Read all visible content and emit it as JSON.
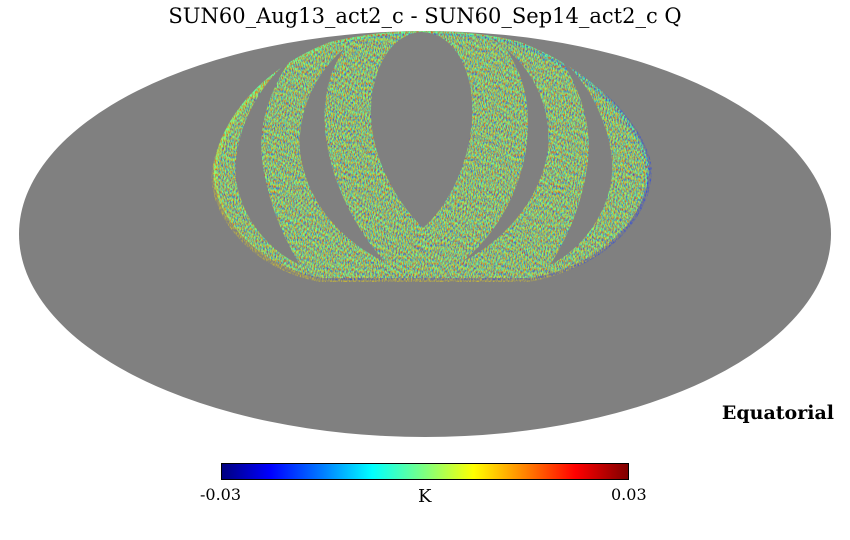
{
  "title": "SUN60_Aug13_act2_c - SUN60_Sep14_act2_c Q",
  "coordinate_system": "Equatorial",
  "colorbar": {
    "min_label": "-0.03",
    "max_label": "0.03",
    "unit": "K",
    "colormap": "jet"
  },
  "colors": {
    "background": "#ffffff",
    "masked": "#808080"
  }
}
